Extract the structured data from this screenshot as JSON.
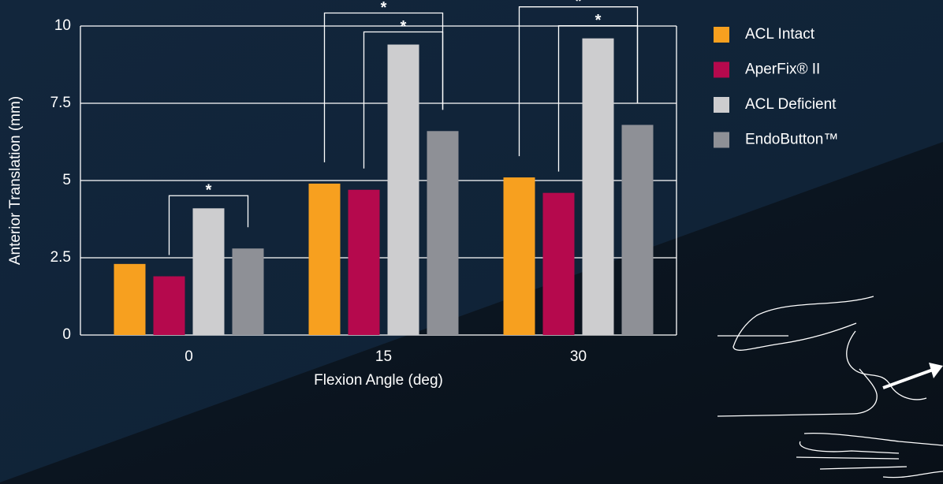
{
  "chart_data": {
    "type": "bar",
    "y_label": "Anterior Translation (mm)",
    "x_label": "Flexion Angle (deg)",
    "categories": [
      "0",
      "15",
      "30"
    ],
    "series": [
      {
        "name": "ACL Intact",
        "color": "#f7a01f",
        "values": [
          2.3,
          4.9,
          5.1
        ]
      },
      {
        "name": "AperFix® II",
        "color": "#b5094d",
        "values": [
          1.9,
          4.7,
          4.6
        ]
      },
      {
        "name": "ACL Deficient",
        "color": "#cdcdcf",
        "values": [
          4.1,
          9.4,
          9.6
        ]
      },
      {
        "name": "EndoButton™",
        "color": "#8e9096",
        "values": [
          2.8,
          6.6,
          6.8
        ]
      }
    ],
    "ylim": [
      0,
      10
    ],
    "yticks": [
      0,
      2.5,
      5,
      7.5,
      10
    ],
    "grid": true,
    "legend": "right",
    "significance": [
      {
        "category": 0,
        "series": [
          1,
          3
        ],
        "label": "*"
      },
      {
        "category": 1,
        "series": [
          1,
          3
        ],
        "label": "*"
      },
      {
        "category": 1,
        "series": [
          0,
          3
        ],
        "label": "*"
      },
      {
        "category": 2,
        "series": [
          1,
          3
        ],
        "label": "*"
      },
      {
        "category": 2,
        "series": [
          0,
          3
        ],
        "label": "*"
      }
    ]
  }
}
